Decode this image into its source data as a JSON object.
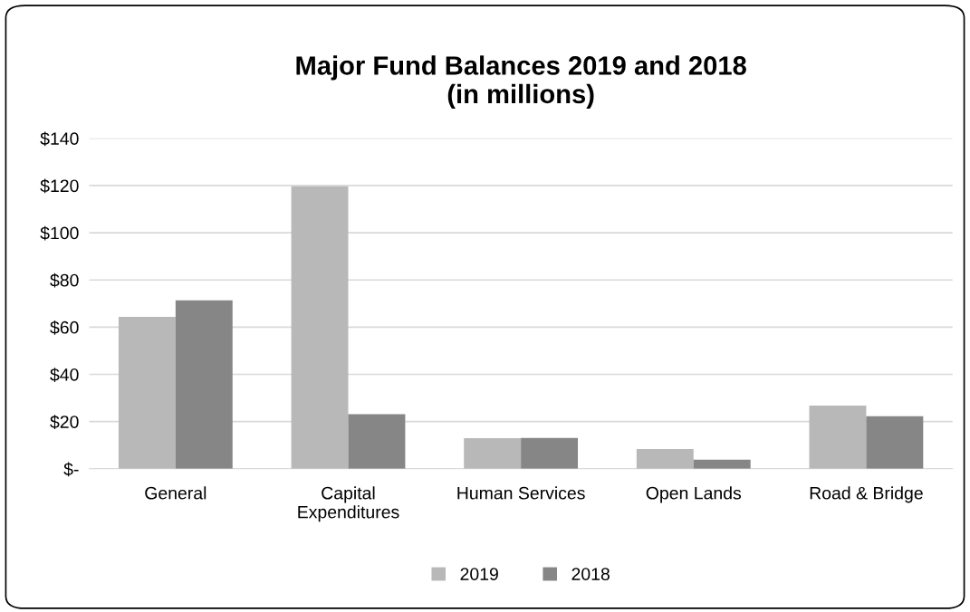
{
  "chart_data": {
    "type": "bar",
    "title": "Major Fund Balances 2019 and 2018\n(in millions)",
    "categories": [
      "General",
      "Capital\nExpenditures",
      "Human Services",
      "Open Lands",
      "Road & Bridge"
    ],
    "series": [
      {
        "name": "2019",
        "color": "#b8b8b8",
        "values": [
          64.4,
          119.7,
          13.0,
          8.4,
          26.8
        ]
      },
      {
        "name": "2018",
        "color": "#868686",
        "values": [
          71.4,
          23.1,
          13.1,
          3.9,
          22.3
        ]
      }
    ],
    "ylim": [
      0,
      140
    ],
    "yticks": [
      {
        "value": 0,
        "label": "$-"
      },
      {
        "value": 20,
        "label": "$20"
      },
      {
        "value": 40,
        "label": "$40"
      },
      {
        "value": 60,
        "label": "$60"
      },
      {
        "value": 80,
        "label": "$80"
      },
      {
        "value": 100,
        "label": "$100"
      },
      {
        "value": 120,
        "label": "$120"
      },
      {
        "value": 140,
        "label": "$140"
      }
    ],
    "grid": "y",
    "legend": "bottom"
  }
}
